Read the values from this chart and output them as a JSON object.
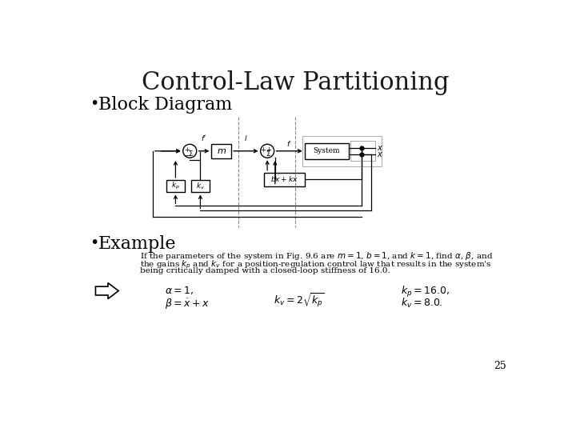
{
  "title": "Control-Law Partitioning",
  "title_fontsize": 22,
  "title_color": "#1a1a1a",
  "background_color": "#ffffff",
  "bullet1": "Block Diagram",
  "bullet2": "Example",
  "bullet_fontsize": 16,
  "page_number": "25"
}
